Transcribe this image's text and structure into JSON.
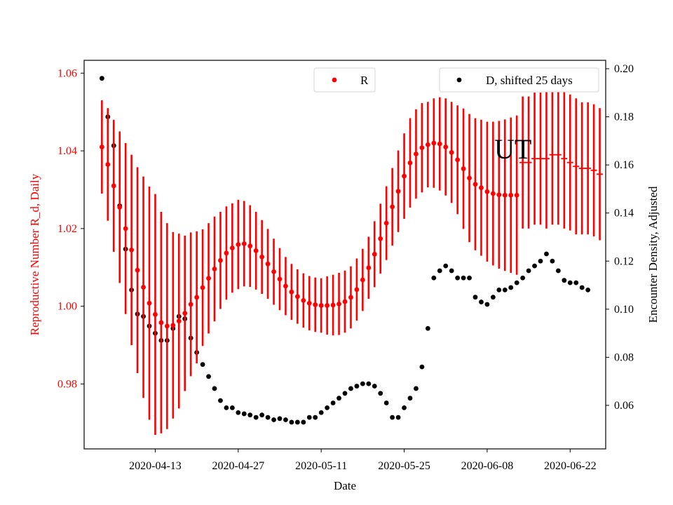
{
  "chart_data": {
    "type": "scatter",
    "xlabel": "Date",
    "ylabel_left": "Reproductive Number R_d, Daily",
    "ylabel_right": "Encounter Density, Adjusted",
    "annotation": "UT",
    "x_ticks": [
      "2020-04-13",
      "2020-04-27",
      "2020-05-11",
      "2020-05-25",
      "2020-06-08",
      "2020-06-22"
    ],
    "y_left_ticks": [
      "0.98",
      "1.00",
      "1.02",
      "1.04",
      "1.06"
    ],
    "y_right_ticks": [
      "0.06",
      "0.08",
      "0.10",
      "0.12",
      "0.14",
      "0.16",
      "0.18",
      "0.20"
    ],
    "xlim": [
      "2020-04-01",
      "2020-06-28"
    ],
    "ylim_left": [
      0.9633,
      1.0633
    ],
    "ylim_right": [
      0.0419,
      0.2035
    ],
    "legend_left_position": "upper-center",
    "legend_right_position": "upper-right",
    "grid": false,
    "colors": {
      "R": "#ff0000",
      "D": "#000000",
      "left_axis": "#ff0000"
    },
    "series": [
      {
        "name": "R",
        "axis": "left",
        "marker": "point-with-errorbar",
        "x": [
          "2020-04-04",
          "2020-04-05",
          "2020-04-06",
          "2020-04-07",
          "2020-04-08",
          "2020-04-09",
          "2020-04-10",
          "2020-04-11",
          "2020-04-12",
          "2020-04-13",
          "2020-04-14",
          "2020-04-15",
          "2020-04-16",
          "2020-04-17",
          "2020-04-18",
          "2020-04-19",
          "2020-04-20",
          "2020-04-21",
          "2020-04-22",
          "2020-04-23",
          "2020-04-24",
          "2020-04-25",
          "2020-04-26",
          "2020-04-27",
          "2020-04-28",
          "2020-04-29",
          "2020-04-30",
          "2020-05-01",
          "2020-05-02",
          "2020-05-03",
          "2020-05-04",
          "2020-05-05",
          "2020-05-06",
          "2020-05-07",
          "2020-05-08",
          "2020-05-09",
          "2020-05-10",
          "2020-05-11",
          "2020-05-12",
          "2020-05-13",
          "2020-05-14",
          "2020-05-15",
          "2020-05-16",
          "2020-05-17",
          "2020-05-18",
          "2020-05-19",
          "2020-05-20",
          "2020-05-21",
          "2020-05-22",
          "2020-05-23",
          "2020-05-24",
          "2020-05-25",
          "2020-05-26",
          "2020-05-27",
          "2020-05-28",
          "2020-05-29",
          "2020-05-30",
          "2020-05-31",
          "2020-06-01",
          "2020-06-02",
          "2020-06-03",
          "2020-06-04",
          "2020-06-05",
          "2020-06-06",
          "2020-06-07",
          "2020-06-08",
          "2020-06-09",
          "2020-06-10",
          "2020-06-11",
          "2020-06-12",
          "2020-06-13"
        ],
        "y": [
          1.041,
          1.0365,
          1.031,
          1.0255,
          1.02,
          1.0145,
          1.0093,
          1.0049,
          1.0008,
          0.9979,
          0.9958,
          0.9949,
          0.9951,
          0.9962,
          0.9982,
          1.0005,
          1.0023,
          1.0048,
          1.0072,
          1.0096,
          1.0118,
          1.0137,
          1.015,
          1.0159,
          1.0161,
          1.0155,
          1.0143,
          1.0127,
          1.0109,
          1.0089,
          1.007,
          1.0052,
          1.0037,
          1.0025,
          1.0015,
          1.0008,
          1.0004,
          1.0002,
          1.0002,
          1.0003,
          1.0006,
          1.0012,
          1.0023,
          1.0043,
          1.0068,
          1.0099,
          1.0134,
          1.0174,
          1.0214,
          1.0256,
          1.0296,
          1.0335,
          1.0369,
          1.0392,
          1.0408,
          1.0416,
          1.042,
          1.0418,
          1.041,
          1.0396,
          1.0377,
          1.0354,
          1.033,
          1.0314,
          1.0305,
          1.0295,
          1.029,
          1.0287,
          1.0286,
          1.0286,
          1.0286
        ],
        "err": [
          0.012,
          0.0145,
          0.017,
          0.0195,
          0.022,
          0.0245,
          0.0265,
          0.0285,
          0.03,
          0.031,
          0.0285,
          0.0265,
          0.024,
          0.0225,
          0.02,
          0.0185,
          0.017,
          0.015,
          0.0142,
          0.0135,
          0.0125,
          0.012,
          0.0115,
          0.0115,
          0.011,
          0.0105,
          0.01,
          0.0095,
          0.009,
          0.0085,
          0.008,
          0.0075,
          0.0072,
          0.007,
          0.007,
          0.007,
          0.007,
          0.007,
          0.0075,
          0.0078,
          0.008,
          0.008,
          0.008,
          0.008,
          0.008,
          0.008,
          0.0085,
          0.009,
          0.0095,
          0.01,
          0.0105,
          0.011,
          0.0115,
          0.0115,
          0.0115,
          0.011,
          0.0115,
          0.012,
          0.0125,
          0.013,
          0.014,
          0.0155,
          0.0165,
          0.017,
          0.0175,
          0.018,
          0.0185,
          0.019,
          0.0195,
          0.02,
          0.0205
        ]
      },
      {
        "name": "R",
        "axis": "left",
        "marker": "dash-with-errorbar",
        "x": [
          "2020-06-14",
          "2020-06-15",
          "2020-06-16",
          "2020-06-17",
          "2020-06-18",
          "2020-06-19",
          "2020-06-20",
          "2020-06-21",
          "2020-06-22",
          "2020-06-23",
          "2020-06-24",
          "2020-06-25",
          "2020-06-26",
          "2020-06-27"
        ],
        "y": [
          1.037,
          1.037,
          1.038,
          1.038,
          1.038,
          1.039,
          1.039,
          1.038,
          1.037,
          1.036,
          1.0355,
          1.0355,
          1.035,
          1.034
        ],
        "err": [
          0.017,
          0.017,
          0.017,
          0.017,
          0.018,
          0.018,
          0.018,
          0.018,
          0.0175,
          0.0175,
          0.017,
          0.017,
          0.017,
          0.017
        ]
      },
      {
        "name": "D, shifted 25 days",
        "axis": "right",
        "marker": "point",
        "x": [
          "2020-04-04",
          "2020-04-05",
          "2020-04-06",
          "2020-04-07",
          "2020-04-08",
          "2020-04-09",
          "2020-04-10",
          "2020-04-11",
          "2020-04-12",
          "2020-04-13",
          "2020-04-14",
          "2020-04-15",
          "2020-04-16",
          "2020-04-17",
          "2020-04-18",
          "2020-04-19",
          "2020-04-20",
          "2020-04-21",
          "2020-04-22",
          "2020-04-23",
          "2020-04-24",
          "2020-04-25",
          "2020-04-26",
          "2020-04-27",
          "2020-04-28",
          "2020-04-29",
          "2020-04-30",
          "2020-05-01",
          "2020-05-02",
          "2020-05-03",
          "2020-05-04",
          "2020-05-05",
          "2020-05-06",
          "2020-05-07",
          "2020-05-08",
          "2020-05-09",
          "2020-05-10",
          "2020-05-11",
          "2020-05-12",
          "2020-05-13",
          "2020-05-14",
          "2020-05-15",
          "2020-05-16",
          "2020-05-17",
          "2020-05-18",
          "2020-05-19",
          "2020-05-20",
          "2020-05-21",
          "2020-05-22",
          "2020-05-23",
          "2020-05-24",
          "2020-05-25",
          "2020-05-26",
          "2020-05-27",
          "2020-05-28",
          "2020-05-29",
          "2020-05-30",
          "2020-05-31",
          "2020-06-01",
          "2020-06-02",
          "2020-06-03",
          "2020-06-04",
          "2020-06-05",
          "2020-06-06",
          "2020-06-07",
          "2020-06-08",
          "2020-06-09",
          "2020-06-10",
          "2020-06-11",
          "2020-06-12",
          "2020-06-13",
          "2020-06-14",
          "2020-06-15",
          "2020-06-16",
          "2020-06-17",
          "2020-06-18",
          "2020-06-19",
          "2020-06-20",
          "2020-06-21",
          "2020-06-22",
          "2020-06-23",
          "2020-06-24",
          "2020-06-25"
        ],
        "y": [
          0.196,
          0.18,
          0.168,
          0.143,
          0.125,
          0.108,
          0.098,
          0.097,
          0.093,
          0.09,
          0.087,
          0.087,
          0.092,
          0.097,
          0.096,
          0.088,
          0.082,
          0.077,
          0.072,
          0.067,
          0.062,
          0.059,
          0.059,
          0.057,
          0.0565,
          0.056,
          0.055,
          0.056,
          0.055,
          0.054,
          0.0545,
          0.054,
          0.053,
          0.053,
          0.053,
          0.055,
          0.055,
          0.057,
          0.059,
          0.061,
          0.063,
          0.065,
          0.067,
          0.068,
          0.069,
          0.069,
          0.068,
          0.065,
          0.061,
          0.055,
          0.055,
          0.059,
          0.063,
          0.067,
          0.076,
          0.092,
          0.113,
          0.116,
          0.118,
          0.116,
          0.113,
          0.113,
          0.113,
          0.105,
          0.103,
          0.102,
          0.105,
          0.108,
          0.108,
          0.109,
          0.111,
          0.113,
          0.116,
          0.118,
          0.12,
          0.123,
          0.12,
          0.116,
          0.112,
          0.111,
          0.111,
          0.109,
          0.108
        ]
      }
    ]
  }
}
